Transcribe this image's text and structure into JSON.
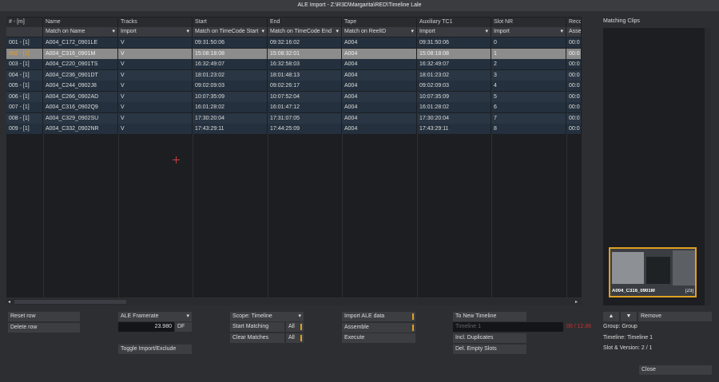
{
  "window_title": "ALE Import - Z:\\R3D\\Margarita\\RED\\Timeline Lale",
  "table": {
    "columns": [
      {
        "header": "# - [m]"
      },
      {
        "header": "Name",
        "filter": "Match on Name"
      },
      {
        "header": "Tracks",
        "filter": "Import"
      },
      {
        "header": "Start",
        "filter": "Match on TimeCode Start"
      },
      {
        "header": "End",
        "filter": "Match on TimeCode End"
      },
      {
        "header": "Tape",
        "filter": "Match on ReelID"
      },
      {
        "header": "Auxiliary TC1",
        "filter": "Import"
      },
      {
        "header": "Slot NR",
        "filter": "Import"
      },
      {
        "header": "Reco",
        "filter": "Asse"
      }
    ],
    "selected_row": 1,
    "rows": [
      [
        "001 - [1]",
        "A004_C172_0901LE",
        "V",
        "09:31:50:06",
        "09:32:16:02",
        "A004",
        "09:31:50:06",
        "0",
        "00:0"
      ],
      [
        "002 - [1]",
        "A004_C316_0901M",
        "V",
        "15:08:18:08",
        "15:08:32:01",
        "A004",
        "15:08:18:08",
        "1",
        "00:0"
      ],
      [
        "003 - [1]",
        "A004_C220_0901TS",
        "V",
        "16:32:49:07",
        "16:32:58:03",
        "A004",
        "16:32:49:07",
        "2",
        "00:0"
      ],
      [
        "004 - [1]",
        "A004_C236_0901DT",
        "V",
        "18:01:23:02",
        "18:01:48:13",
        "A004",
        "18:01:23:02",
        "3",
        "00:0"
      ],
      [
        "005 - [1]",
        "A004_C244_0902J8",
        "V",
        "09:02:09:03",
        "09:02:26:17",
        "A004",
        "09:02:09:03",
        "4",
        "00:0"
      ],
      [
        "006 - [1]",
        "A004_C266_0902AD",
        "V",
        "10:07:35:09",
        "10:07:52:04",
        "A004",
        "10:07:35:09",
        "5",
        "00:0"
      ],
      [
        "007 - [1]",
        "A004_C316_0902Q9",
        "V",
        "16:01:28:02",
        "16:01:47:12",
        "A004",
        "16:01:28:02",
        "6",
        "00:0"
      ],
      [
        "008 - [1]",
        "A004_C329_0902SU",
        "V",
        "17:30:20:04",
        "17:31:07:05",
        "A004",
        "17:30:20:04",
        "7",
        "00:0"
      ],
      [
        "009 - [1]",
        "A004_C332_0902NR",
        "V",
        "17:43:29:11",
        "17:44:25:09",
        "A004",
        "17:43:29:11",
        "8",
        "00:0"
      ]
    ]
  },
  "side_panel": {
    "title": "Matching Clips",
    "thumbnail_name": "A004_C316_0901M",
    "thumbnail_count": "[23]",
    "group": "Group: Group",
    "timeline": "Timeline: Timeline 1",
    "slot": "Slot & Version: 2 / 1"
  },
  "buttons": {
    "reset_row": "Reset row",
    "delete_row": "Delete row",
    "framerate": "ALE Framerate",
    "framerate_value": "23.980",
    "df": "DF",
    "toggle_import": "Toggle Import/Exclude",
    "scope": "Scope: Timeline",
    "start_matching": "Start Matching",
    "clear_matches": "Clear Matches",
    "all": "All",
    "import_ale": "Import ALE data",
    "assemble": "Assemble",
    "execute": "Execute",
    "to_new_timeline": "To New Timeline",
    "timeline_placeholder": "Timeline 1",
    "status": "00 / 12.86",
    "incl_duplicates": "Incl. Duplicates",
    "del_empty_slots": "Del. Empty Slots",
    "remove": "Remove",
    "close": "Close"
  }
}
